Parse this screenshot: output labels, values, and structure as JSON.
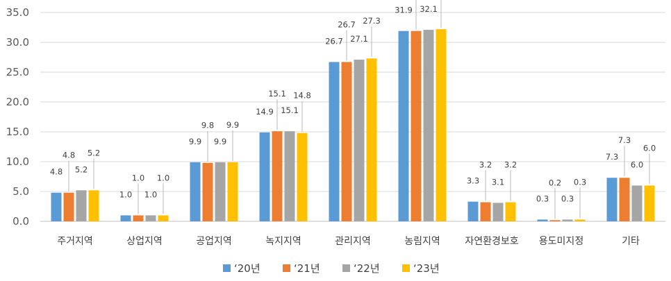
{
  "chart_data": {
    "type": "bar",
    "title": "",
    "xlabel": "",
    "ylabel": "",
    "ylim": [
      0,
      35
    ],
    "ytick_labels": [
      "0.0",
      "5.0",
      "10.0",
      "15.0",
      "20.0",
      "25.0",
      "30.0",
      "35.0"
    ],
    "grid": true,
    "legend_position": "bottom",
    "categories": [
      "주거지역",
      "상업지역",
      "공업지역",
      "녹지지역",
      "관리지역",
      "농림지역",
      "자연환경보호",
      "용도미지정",
      "기타"
    ],
    "series": [
      {
        "name": "‘20년",
        "color": "#5b9bd5",
        "values": [
          4.8,
          1.0,
          9.9,
          14.9,
          26.7,
          31.9,
          3.3,
          0.3,
          7.3
        ]
      },
      {
        "name": "‘21년",
        "color": "#ed7d31",
        "values": [
          4.8,
          1.0,
          9.8,
          15.1,
          26.7,
          31.9,
          3.2,
          0.2,
          7.3
        ]
      },
      {
        "name": "‘22년",
        "color": "#a5a5a5",
        "values": [
          5.2,
          1.0,
          9.9,
          15.1,
          27.1,
          32.1,
          3.1,
          0.3,
          6.0
        ]
      },
      {
        "name": "‘23년",
        "color": "#ffc000",
        "values": [
          5.2,
          1.0,
          9.9,
          14.8,
          27.3,
          32.2,
          3.2,
          0.3,
          6.0
        ]
      }
    ]
  }
}
